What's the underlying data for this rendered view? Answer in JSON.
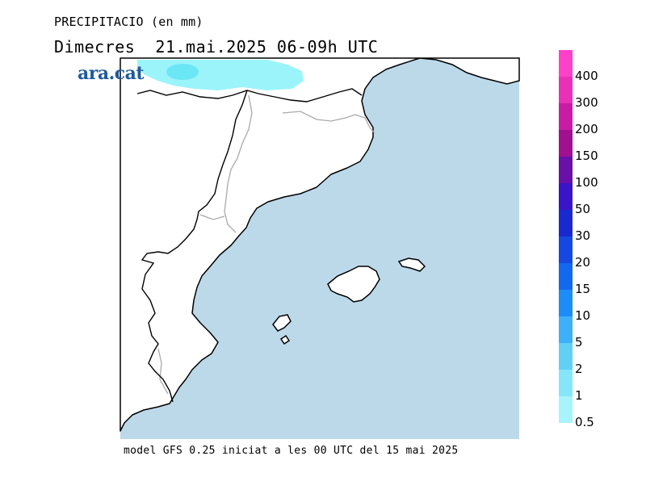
{
  "title": "PRECIPITACIO (en mm)",
  "subtitle": "Dimecres  21.mai.2025 06-09h UTC",
  "brand": "ara.cat",
  "footer": "model GFS 0.25 iniciat a les 00 UTC del 15 mai 2025",
  "colors": {
    "sea": "#bcd9ea",
    "land": "#ffffff",
    "coast": "#000000",
    "border": "#aaaaaa",
    "precip_light": "#9cf4fb",
    "precip_mid": "#6be6f5"
  },
  "legend": [
    {
      "label": "400",
      "color": "#ff40c8"
    },
    {
      "label": "300",
      "color": "#e830b8"
    },
    {
      "label": "200",
      "color": "#c81ca4"
    },
    {
      "label": "150",
      "color": "#a01090"
    },
    {
      "label": "100",
      "color": "#6a10a8"
    },
    {
      "label": "50",
      "color": "#3a14c8"
    },
    {
      "label": "30",
      "color": "#1a28d0"
    },
    {
      "label": "20",
      "color": "#1448e0"
    },
    {
      "label": "15",
      "color": "#1268ee"
    },
    {
      "label": "10",
      "color": "#1c8cf8"
    },
    {
      "label": "5",
      "color": "#3cb0fb"
    },
    {
      "label": "2",
      "color": "#60d0f7"
    },
    {
      "label": "1",
      "color": "#86e6f9"
    },
    {
      "label": "0.5",
      "color": "#a8f4fc"
    }
  ]
}
